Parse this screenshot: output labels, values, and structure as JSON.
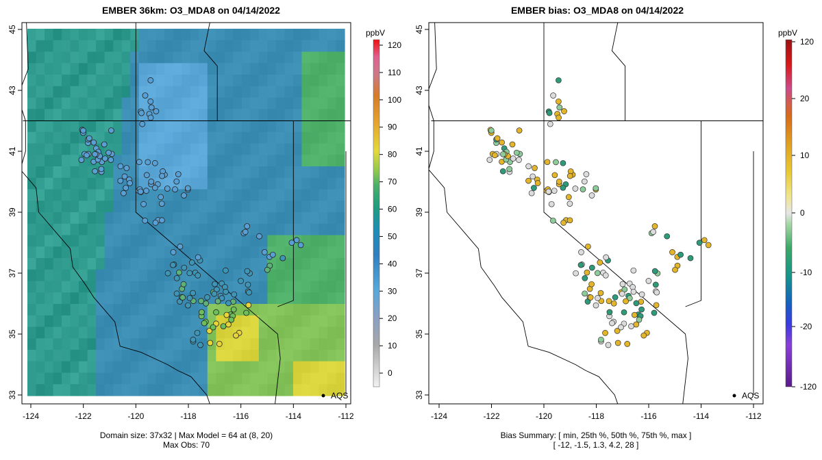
{
  "colors": {
    "ocean": "#2fa08f",
    "land_model": "#3d8fb3",
    "coast_green": "#5fb564",
    "yellow": "#e8d63a",
    "bias_neutral": "#dcdcdc",
    "bias_positive": "#e3b52a",
    "bias_negative": "#2e9a7a"
  },
  "chart_data": [
    {
      "type": "heatmap",
      "title": "EMBER 36km: O3_MDA8 on 04/14/2022",
      "xlabel": "",
      "ylabel": "",
      "xlim": [
        -124,
        -112
      ],
      "ylim": [
        33,
        45
      ],
      "x_ticks": [
        "-124",
        "-122",
        "-120",
        "-118",
        "-116",
        "-114",
        "-112"
      ],
      "y_ticks": [
        "33",
        "35",
        "37",
        "39",
        "41",
        "43",
        "45"
      ],
      "colorbar": {
        "unit": "ppbV",
        "ticks": [
          "0",
          "10",
          "20",
          "30",
          "40",
          "50",
          "60",
          "70",
          "80",
          "90",
          "100",
          "110",
          "120"
        ],
        "range": [
          -5,
          122
        ]
      },
      "legend_label": "AQS",
      "domain_caption": "Domain size: 37x32 | Max Model = 64 at (8, 20)",
      "obs_caption": "Max Obs: 70",
      "domain_size": "37x32",
      "max_model": 64,
      "max_obs": 70
    },
    {
      "type": "scatter",
      "title": "EMBER bias: O3_MDA8 on 04/14/2022",
      "xlabel": "",
      "ylabel": "",
      "xlim": [
        -124,
        -112
      ],
      "ylim": [
        33,
        45
      ],
      "x_ticks": [
        "-124",
        "-122",
        "-120",
        "-118",
        "-116",
        "-114",
        "-112"
      ],
      "y_ticks": [
        "33",
        "35",
        "37",
        "39",
        "41",
        "43",
        "45"
      ],
      "colorbar": {
        "unit": "ppbV",
        "ticks": [
          "-120",
          "-20",
          "-10",
          "0",
          "10",
          "20",
          "120"
        ]
      },
      "legend_label": "AQS",
      "summary_caption": "Bias Summary: [ min, 25th %, 50th %, 75th %, max ]",
      "summary_values": "[ -12,   -1.5,   1.3,   4.2,   28 ]",
      "summary": {
        "min": -12,
        "p25": -1.5,
        "p50": 1.3,
        "p75": 4.2,
        "max": 28
      }
    }
  ]
}
